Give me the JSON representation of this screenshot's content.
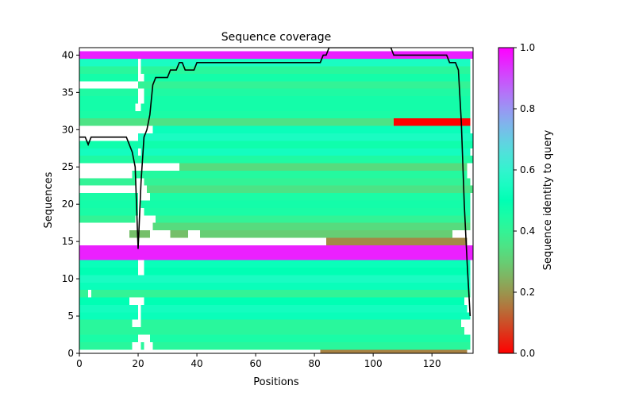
{
  "chart_data": {
    "type": "heatmap",
    "title": "Sequence coverage",
    "xlabel": "Positions",
    "ylabel": "Sequences",
    "xlim": [
      0,
      134
    ],
    "ylim": [
      0,
      41
    ],
    "x_ticks": [
      0,
      20,
      40,
      60,
      80,
      100,
      120
    ],
    "y_ticks": [
      0,
      5,
      10,
      15,
      20,
      25,
      30,
      35,
      40
    ],
    "grid": false,
    "colorbar": {
      "label": "Sequence identity to query",
      "colormap": "rainbow_r",
      "range": [
        0,
        1
      ],
      "ticks": [
        0.0,
        0.2,
        0.4,
        0.6,
        0.8,
        1.0
      ],
      "tick_labels": [
        "0.0",
        "0.2",
        "0.4",
        "0.6",
        "0.8",
        "1.0"
      ]
    },
    "rows": [
      {
        "row": 0,
        "segments": [
          [
            82,
            132,
            0.17
          ]
        ]
      },
      {
        "row": 1,
        "segments": [
          [
            0,
            18,
            0.42
          ],
          [
            21,
            22,
            0.42
          ],
          [
            25,
            133,
            0.42
          ]
        ]
      },
      {
        "row": 2,
        "segments": [
          [
            0,
            20,
            0.45
          ],
          [
            24,
            133,
            0.45
          ]
        ]
      },
      {
        "row": 3,
        "segments": [
          [
            0,
            131,
            0.42
          ]
        ]
      },
      {
        "row": 4,
        "segments": [
          [
            0,
            18,
            0.42
          ],
          [
            21,
            130,
            0.42
          ]
        ]
      },
      {
        "row": 5,
        "segments": [
          [
            0,
            20,
            0.52
          ],
          [
            21,
            133,
            0.52
          ]
        ]
      },
      {
        "row": 6,
        "segments": [
          [
            0,
            20,
            0.54
          ],
          [
            21,
            132,
            0.54
          ]
        ]
      },
      {
        "row": 7,
        "segments": [
          [
            0,
            17,
            0.5
          ],
          [
            22,
            131,
            0.5
          ]
        ]
      },
      {
        "row": 8,
        "segments": [
          [
            0,
            3,
            0.4
          ],
          [
            4,
            133,
            0.4
          ]
        ]
      },
      {
        "row": 9,
        "segments": [
          [
            0,
            133,
            0.52
          ]
        ]
      },
      {
        "row": 10,
        "segments": [
          [
            0,
            133,
            0.55
          ]
        ]
      },
      {
        "row": 11,
        "segments": [
          [
            0,
            20,
            0.5
          ],
          [
            22,
            133,
            0.5
          ]
        ]
      },
      {
        "row": 12,
        "segments": [
          [
            0,
            20,
            0.52
          ],
          [
            22,
            133,
            0.52
          ]
        ]
      },
      {
        "row": 13,
        "segments": [
          [
            0,
            134,
            0.96
          ]
        ]
      },
      {
        "row": 14,
        "segments": [
          [
            0,
            134,
            0.96
          ]
        ]
      },
      {
        "row": 15,
        "segments": [
          [
            84,
            132,
            0.18
          ]
        ]
      },
      {
        "row": 16,
        "segments": [
          [
            17,
            24,
            0.27
          ],
          [
            31,
            37,
            0.27
          ],
          [
            41,
            127,
            0.3
          ]
        ]
      },
      {
        "row": 17,
        "segments": [
          [
            25,
            133,
            0.33
          ]
        ]
      },
      {
        "row": 18,
        "segments": [
          [
            0,
            19,
            0.4
          ],
          [
            26,
            133,
            0.4
          ]
        ]
      },
      {
        "row": 19,
        "segments": [
          [
            0,
            20,
            0.45
          ],
          [
            22,
            133,
            0.45
          ]
        ]
      },
      {
        "row": 20,
        "segments": [
          [
            0,
            20,
            0.46
          ],
          [
            21,
            133,
            0.46
          ]
        ]
      },
      {
        "row": 21,
        "segments": [
          [
            0,
            20,
            0.45
          ],
          [
            24,
            133,
            0.45
          ]
        ]
      },
      {
        "row": 22,
        "segments": [
          [
            23,
            134,
            0.35
          ]
        ]
      },
      {
        "row": 23,
        "segments": [
          [
            0,
            19,
            0.4
          ],
          [
            22,
            133,
            0.4
          ]
        ]
      },
      {
        "row": 24,
        "segments": [
          [
            18,
            132,
            0.43
          ]
        ]
      },
      {
        "row": 25,
        "segments": [
          [
            34,
            132,
            0.33
          ]
        ]
      },
      {
        "row": 26,
        "segments": [
          [
            0,
            134,
            0.44
          ]
        ]
      },
      {
        "row": 27,
        "segments": [
          [
            0,
            20,
            0.54
          ],
          [
            21,
            133,
            0.54
          ]
        ]
      },
      {
        "row": 28,
        "segments": [
          [
            0,
            134,
            0.47
          ]
        ]
      },
      {
        "row": 29,
        "segments": [
          [
            20,
            134,
            0.55
          ]
        ]
      },
      {
        "row": 30,
        "segments": [
          [
            25,
            133,
            0.52
          ]
        ]
      },
      {
        "row": 31,
        "segments": [
          [
            0,
            107,
            0.35
          ],
          [
            107,
            133,
            0.0
          ]
        ]
      },
      {
        "row": 32,
        "segments": [
          [
            0,
            133,
            0.45
          ]
        ]
      },
      {
        "row": 33,
        "segments": [
          [
            0,
            19,
            0.46
          ],
          [
            21,
            133,
            0.46
          ]
        ]
      },
      {
        "row": 34,
        "segments": [
          [
            0,
            20,
            0.46
          ],
          [
            22,
            133,
            0.46
          ]
        ]
      },
      {
        "row": 35,
        "segments": [
          [
            0,
            20,
            0.44
          ],
          [
            22,
            133,
            0.44
          ]
        ]
      },
      {
        "row": 36,
        "segments": [
          [
            20,
            133,
            0.4
          ]
        ]
      },
      {
        "row": 37,
        "segments": [
          [
            0,
            20,
            0.46
          ],
          [
            22,
            133,
            0.46
          ]
        ]
      },
      {
        "row": 38,
        "segments": [
          [
            0,
            20,
            0.42
          ],
          [
            21,
            133,
            0.42
          ]
        ]
      },
      {
        "row": 39,
        "segments": [
          [
            0,
            20,
            0.55
          ],
          [
            21,
            133,
            0.55
          ]
        ]
      },
      {
        "row": 40,
        "segments": [
          [
            0,
            134,
            0.96
          ]
        ]
      }
    ],
    "coverage_line": {
      "x": [
        0,
        2,
        3,
        4,
        5,
        10,
        16,
        17,
        18,
        19,
        20,
        21,
        22,
        23,
        24,
        25,
        26,
        28,
        30,
        31,
        32,
        33,
        34,
        35,
        36,
        37,
        38,
        39,
        40,
        41,
        45,
        60,
        75,
        82,
        83,
        84,
        85,
        90,
        100,
        106,
        107,
        108,
        110,
        120,
        125,
        126,
        127,
        128,
        129,
        130,
        131,
        132,
        133
      ],
      "y": [
        29,
        29,
        28,
        29,
        29,
        29,
        29,
        28,
        27,
        25,
        14,
        23,
        29,
        30,
        32,
        36,
        37,
        37,
        37,
        38,
        38,
        38,
        39,
        39,
        38,
        38,
        38,
        38,
        39,
        39,
        39,
        39,
        39,
        39,
        40,
        40,
        41,
        41,
        41,
        41,
        40,
        40,
        40,
        40,
        40,
        39,
        39,
        39,
        38,
        31,
        20,
        12,
        5
      ]
    }
  }
}
